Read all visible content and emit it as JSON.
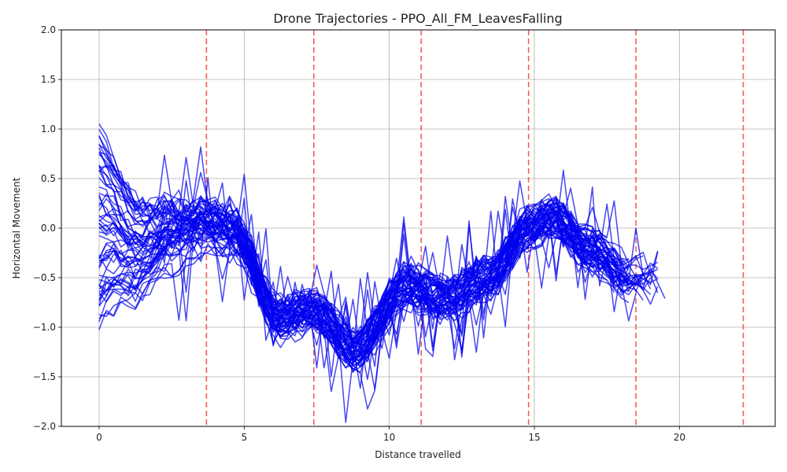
{
  "chart_data": {
    "type": "line",
    "title": "Drone Trajectories - PPO_All_FM_LeavesFalling",
    "xlabel": "Distance travelled",
    "ylabel": "Horizontal Movement",
    "xlim": [
      -1.3,
      23.3
    ],
    "ylim": [
      -2.0,
      2.0
    ],
    "xticks": [
      0,
      5,
      10,
      15,
      20
    ],
    "yticks": [
      -2.0,
      -1.5,
      -1.0,
      -0.5,
      0.0,
      0.5,
      1.0,
      1.5,
      2.0
    ],
    "grid": true,
    "line_color": "#0000ee",
    "marker_line_color": "#ee4444",
    "vertical_markers": [
      3.7,
      7.4,
      11.1,
      14.8,
      18.5,
      22.2
    ],
    "trajectory_model": {
      "count": 60,
      "x_step": 0.25,
      "x_min_end": 17.3,
      "x_max_end": 19.6,
      "waypoints": {
        "x": [
          0,
          1.2,
          2.5,
          3.6,
          4.6,
          6.2,
          7.4,
          8.8,
          10.6,
          12.0,
          13.5,
          14.8,
          15.6,
          17.0,
          18.3,
          19.6
        ],
        "y": [
          0.0,
          -0.4,
          -0.05,
          0.05,
          -0.05,
          -0.95,
          -0.85,
          -1.25,
          -0.6,
          -0.72,
          -0.5,
          0.0,
          0.1,
          -0.25,
          -0.5,
          -0.5
        ]
      },
      "start_y_min": -1.0,
      "start_y_max": 1.02,
      "spread": 0.18,
      "jitter": 0.1,
      "spike_probability": 0.04
    }
  }
}
